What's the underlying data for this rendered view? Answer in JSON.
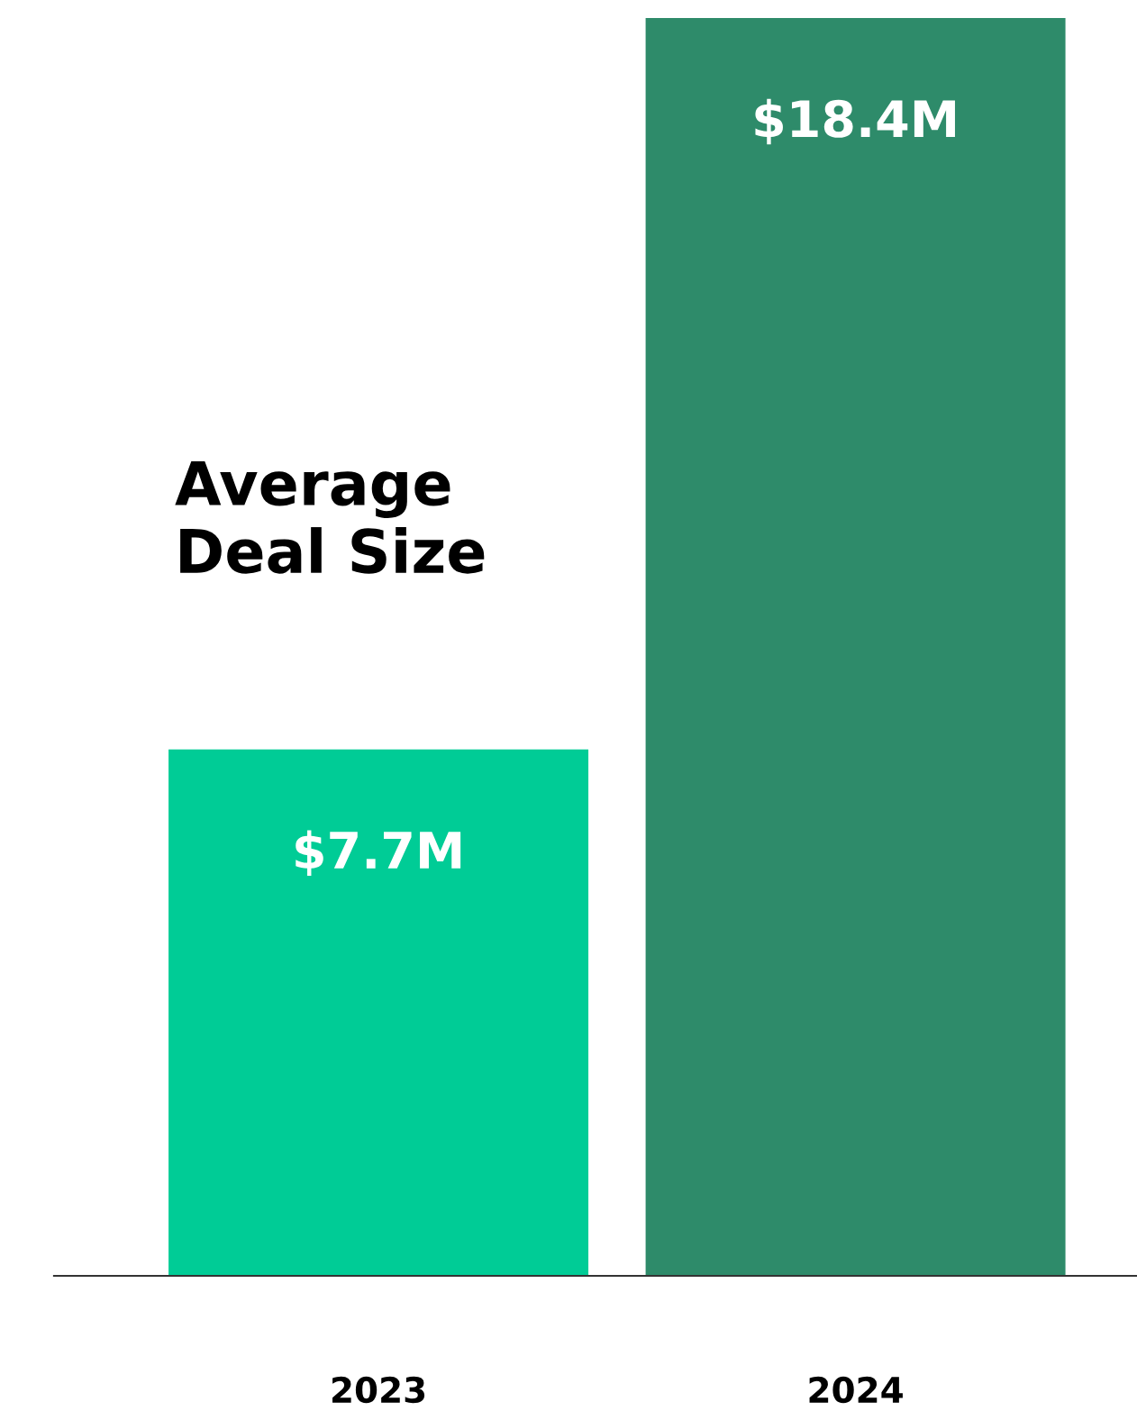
{
  "chart_data": {
    "type": "bar",
    "title": "Average\nDeal Size",
    "categories": [
      "2023",
      "2024"
    ],
    "values": [
      7.7,
      18.4
    ],
    "colors": [
      "#00cc96",
      "#2e8b6a"
    ],
    "value_labels": [
      "$7.7M",
      "$18.4M"
    ],
    "grid": false,
    "legend": false
  }
}
